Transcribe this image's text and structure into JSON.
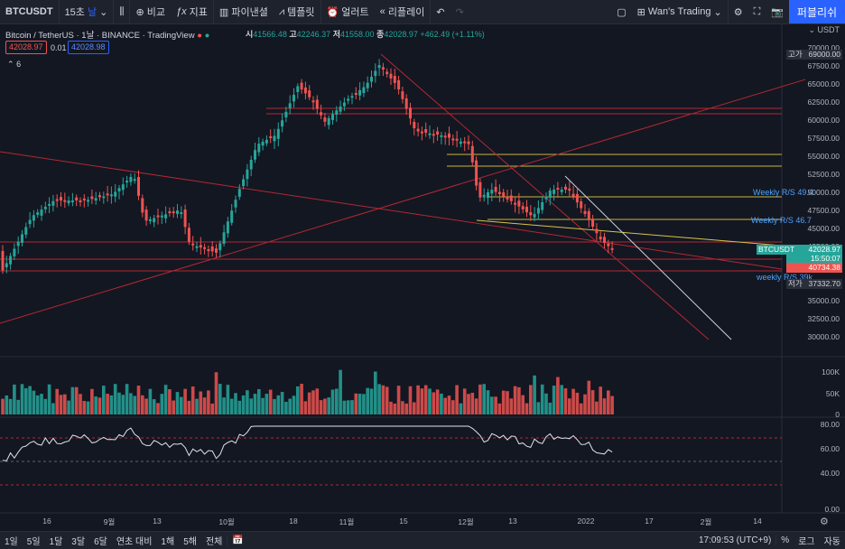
{
  "toolbar": {
    "symbol": "BTCUSDT",
    "interval": "15초",
    "interval_unit": "날",
    "compare": "비교",
    "indicators": "지표",
    "financials": "파이낸셜",
    "templates": "템플릿",
    "alert": "얼러트",
    "replay": "리플레이",
    "layout_name": "Wan's Trading",
    "publish": "퍼블리쉬"
  },
  "legend": {
    "title": "Bitcoin / TetherUS · 1날 · BINANCE · TradingView",
    "open_label": "시",
    "open": "41566.48",
    "high_label": "고",
    "high": "42246.37",
    "low_label": "저",
    "low": "41558.00",
    "close_label": "종",
    "close": "42028.97",
    "change": "+462.49 (+1.11%)",
    "bid": "42028.97",
    "spread": "0.01",
    "ask": "42028.98",
    "indicator_count": "6"
  },
  "price_axis": {
    "unit": "USDT",
    "ticks": [
      "70000.00",
      "67500.00",
      "65000.00",
      "62500.00",
      "60000.00",
      "57500.00",
      "55000.00",
      "52500.00",
      "50000.00",
      "47500.00",
      "45000.00",
      "42500.00",
      "40000.00",
      "37500.00",
      "35000.00",
      "32500.00",
      "30000.00"
    ],
    "high_tag_label": "고가",
    "high_tag": "69000.00",
    "symbol_tag": "BTCUSDT",
    "last_price": "42028.97",
    "countdown": "15:50:07",
    "level_tag": "40734.38",
    "low_tag_label": "저가",
    "low_tag": "37332.70"
  },
  "annotations": {
    "w1": "Weekly R/S 49.4",
    "w2": "Weekly R/S 46.7",
    "w3": "weekly R/S 39k"
  },
  "volume_axis": [
    "100K",
    "50K",
    "0"
  ],
  "rsi_axis": [
    "80.00",
    "60.00",
    "40.00",
    "0.00"
  ],
  "time_axis": [
    "16",
    "9월",
    "13",
    "10월",
    "18",
    "11월",
    "15",
    "12월",
    "13",
    "2022",
    "17",
    "2월",
    "14"
  ],
  "bottombar": {
    "ranges": [
      "1일",
      "5일",
      "1달",
      "3달",
      "6달",
      "연초 대비",
      "1해",
      "5해",
      "전체"
    ],
    "clock": "17:09:53 (UTC+9)",
    "pct": "%",
    "log": "로그",
    "auto": "자동"
  },
  "colors": {
    "up": "#26a69a",
    "down": "#ef5350",
    "accent": "#2962ff",
    "bg": "#131722"
  }
}
